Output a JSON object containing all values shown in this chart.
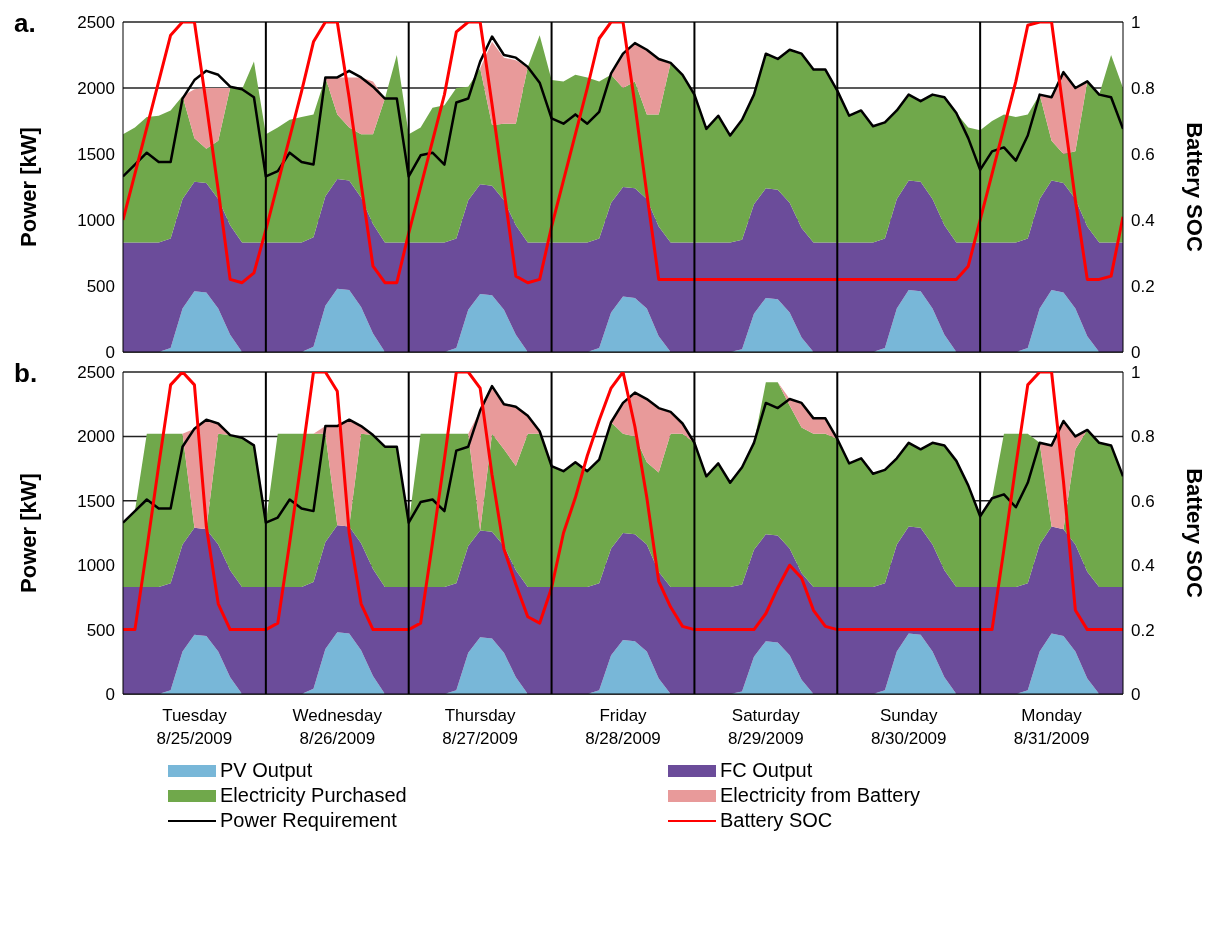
{
  "chart_data": [
    {
      "type": "area",
      "title": "a.",
      "ylabel": "Power [kW]",
      "y2label": "Battery SOC",
      "stacked": true,
      "grid": "y",
      "tick_labels": "y",
      "x": [
        "2009-08-25T00:00",
        "2009-08-25T02:00",
        "2009-08-25T04:00",
        "2009-08-25T06:00",
        "2009-08-25T08:00",
        "2009-08-25T10:00",
        "2009-08-25T12:00",
        "2009-08-25T14:00",
        "2009-08-25T16:00",
        "2009-08-25T18:00",
        "2009-08-25T20:00",
        "2009-08-25T22:00",
        "2009-08-26T00:00",
        "2009-08-26T02:00",
        "2009-08-26T04:00",
        "2009-08-26T06:00",
        "2009-08-26T08:00",
        "2009-08-26T10:00",
        "2009-08-26T12:00",
        "2009-08-26T14:00",
        "2009-08-26T16:00",
        "2009-08-26T18:00",
        "2009-08-26T20:00",
        "2009-08-26T22:00",
        "2009-08-27T00:00",
        "2009-08-27T02:00",
        "2009-08-27T04:00",
        "2009-08-27T06:00",
        "2009-08-27T08:00",
        "2009-08-27T10:00",
        "2009-08-27T12:00",
        "2009-08-27T14:00",
        "2009-08-27T16:00",
        "2009-08-27T18:00",
        "2009-08-27T20:00",
        "2009-08-27T22:00",
        "2009-08-28T00:00",
        "2009-08-28T02:00",
        "2009-08-28T04:00",
        "2009-08-28T06:00",
        "2009-08-28T08:00",
        "2009-08-28T10:00",
        "2009-08-28T12:00",
        "2009-08-28T14:00",
        "2009-08-28T16:00",
        "2009-08-28T18:00",
        "2009-08-28T20:00",
        "2009-08-28T22:00",
        "2009-08-29T00:00",
        "2009-08-29T02:00",
        "2009-08-29T04:00",
        "2009-08-29T06:00",
        "2009-08-29T08:00",
        "2009-08-29T10:00",
        "2009-08-29T12:00",
        "2009-08-29T14:00",
        "2009-08-29T16:00",
        "2009-08-29T18:00",
        "2009-08-29T20:00",
        "2009-08-29T22:00",
        "2009-08-30T00:00",
        "2009-08-30T02:00",
        "2009-08-30T04:00",
        "2009-08-30T06:00",
        "2009-08-30T08:00",
        "2009-08-30T10:00",
        "2009-08-30T12:00",
        "2009-08-30T14:00",
        "2009-08-30T16:00",
        "2009-08-30T18:00",
        "2009-08-30T20:00",
        "2009-08-30T22:00",
        "2009-08-31T00:00",
        "2009-08-31T02:00",
        "2009-08-31T04:00",
        "2009-08-31T06:00",
        "2009-08-31T08:00",
        "2009-08-31T10:00",
        "2009-08-31T12:00",
        "2009-08-31T14:00",
        "2009-08-31T16:00",
        "2009-08-31T18:00",
        "2009-08-31T20:00",
        "2009-08-31T22:00",
        "2009-09-01T00:00"
      ],
      "xlim": [
        "2009-08-25T00:00",
        "2009-09-01T00:00"
      ],
      "ylim": [
        0,
        2500
      ],
      "yticks": [
        0,
        500,
        1000,
        1500,
        2000,
        2500
      ],
      "y2lim": [
        0,
        1
      ],
      "y2ticks": [
        0,
        0.2,
        0.4,
        0.6,
        0.8,
        1
      ],
      "ref_lines": [
        {
          "axis": "x",
          "value": "2009-08-26T00:00",
          "color": "#000000"
        },
        {
          "axis": "x",
          "value": "2009-08-27T00:00",
          "color": "#000000"
        },
        {
          "axis": "x",
          "value": "2009-08-28T00:00",
          "color": "#000000"
        },
        {
          "axis": "x",
          "value": "2009-08-29T00:00",
          "color": "#000000"
        },
        {
          "axis": "x",
          "value": "2009-08-30T00:00",
          "color": "#000000"
        },
        {
          "axis": "x",
          "value": "2009-08-31T00:00",
          "color": "#000000"
        }
      ],
      "series": [
        {
          "color": "#78b7d8",
          "values": [
            0,
            0,
            0,
            0,
            30,
            330,
            460,
            450,
            330,
            130,
            0,
            0,
            0,
            0,
            0,
            0,
            40,
            350,
            480,
            470,
            340,
            140,
            0,
            0,
            0,
            0,
            0,
            0,
            30,
            320,
            440,
            430,
            320,
            130,
            0,
            0,
            0,
            0,
            0,
            0,
            30,
            300,
            420,
            410,
            330,
            120,
            0,
            0,
            0,
            0,
            0,
            0,
            20,
            290,
            410,
            400,
            300,
            110,
            0,
            0,
            0,
            0,
            0,
            0,
            30,
            330,
            470,
            460,
            330,
            130,
            0,
            0,
            0,
            0,
            0,
            0,
            30,
            330,
            470,
            450,
            330,
            120,
            0,
            0,
            0
          ]
        },
        {
          "color": "#6b4c9a",
          "values": [
            830,
            830,
            830,
            830,
            830,
            830,
            830,
            830,
            830,
            830,
            830,
            830,
            830,
            830,
            830,
            830,
            830,
            830,
            830,
            830,
            830,
            830,
            830,
            830,
            830,
            830,
            830,
            830,
            830,
            830,
            830,
            830,
            830,
            830,
            830,
            830,
            830,
            830,
            830,
            830,
            830,
            830,
            830,
            830,
            830,
            830,
            830,
            830,
            830,
            830,
            830,
            830,
            830,
            830,
            830,
            830,
            830,
            830,
            830,
            830,
            830,
            830,
            830,
            830,
            830,
            830,
            830,
            830,
            830,
            830,
            830,
            830,
            830,
            830,
            830,
            830,
            830,
            830,
            830,
            830,
            830,
            830,
            830,
            830,
            830
          ]
        },
        {
          "color": "#70a84b",
          "values": [
            820,
            870,
            950,
            960,
            970,
            780,
            330,
            260,
            440,
            1040,
            1160,
            1370,
            820,
            870,
            930,
            950,
            930,
            900,
            490,
            400,
            480,
            680,
            1090,
            1420,
            820,
            870,
            1020,
            1040,
            1140,
            860,
            880,
            460,
            580,
            770,
            1330,
            1570,
            1230,
            1220,
            1270,
            1250,
            1190,
            970,
            750,
            810,
            640,
            850,
            1360,
            1270,
            1120,
            860,
            960,
            810,
            910,
            830,
            1020,
            990,
            1160,
            1320,
            1310,
            1310,
            1150,
            960,
            1000,
            880,
            880,
            670,
            650,
            610,
            790,
            970,
            980,
            870,
            850,
            920,
            970,
            950,
            940,
            790,
            300,
            220,
            360,
            1100,
            1120,
            1420,
            1170
          ]
        },
        {
          "color": "#e89a9a",
          "values": [
            0,
            0,
            0,
            0,
            0,
            0,
            370,
            460,
            400,
            0,
            0,
            0,
            0,
            0,
            0,
            0,
            0,
            0,
            280,
            380,
            430,
            400,
            0,
            0,
            0,
            0,
            0,
            0,
            0,
            0,
            0,
            630,
            500,
            480,
            0,
            0,
            0,
            0,
            0,
            0,
            0,
            0,
            260,
            290,
            490,
            420,
            0,
            0,
            0,
            0,
            0,
            0,
            0,
            0,
            0,
            0,
            0,
            0,
            0,
            0,
            0,
            0,
            0,
            0,
            0,
            0,
            0,
            0,
            0,
            0,
            0,
            0,
            0,
            0,
            0,
            0,
            0,
            0,
            330,
            620,
            480,
            0,
            0,
            0,
            0
          ]
        },
        {
          "type": "line",
          "color": "#000000",
          "values": [
            1330,
            1420,
            1510,
            1440,
            1440,
            1920,
            2060,
            2130,
            2100,
            2010,
            1990,
            1930,
            1330,
            1370,
            1510,
            1440,
            1420,
            2080,
            2080,
            2130,
            2080,
            2010,
            1920,
            1920,
            1330,
            1490,
            1510,
            1420,
            1890,
            1920,
            2200,
            2390,
            2250,
            2230,
            2160,
            2040,
            1770,
            1730,
            1800,
            1730,
            1820,
            2110,
            2260,
            2340,
            2290,
            2220,
            2190,
            2100,
            1950,
            1690,
            1790,
            1640,
            1760,
            1950,
            2260,
            2220,
            2290,
            2260,
            2140,
            2140,
            1980,
            1790,
            1830,
            1710,
            1740,
            1830,
            1950,
            1900,
            1950,
            1930,
            1810,
            1620,
            1380,
            1520,
            1550,
            1450,
            1640,
            1950,
            1930,
            2120,
            2000,
            2050,
            1950,
            1930,
            1690
          ]
        },
        {
          "type": "line",
          "axis": "y2",
          "color": "#ff0000",
          "values": [
            0.4,
            0.54,
            0.68,
            0.82,
            0.96,
            1,
            1,
            0.75,
            0.49,
            0.22,
            0.21,
            0.24,
            0.37,
            0.51,
            0.65,
            0.79,
            0.94,
            1,
            1,
            0.77,
            0.51,
            0.26,
            0.21,
            0.21,
            0.36,
            0.5,
            0.64,
            0.78,
            0.97,
            1,
            1,
            0.75,
            0.49,
            0.23,
            0.21,
            0.22,
            0.38,
            0.52,
            0.66,
            0.8,
            0.95,
            1,
            1,
            0.75,
            0.48,
            0.22,
            0.22,
            0.22,
            0.22,
            0.22,
            0.22,
            0.22,
            0.22,
            0.22,
            0.22,
            0.22,
            0.22,
            0.22,
            0.22,
            0.22,
            0.22,
            0.22,
            0.22,
            0.22,
            0.22,
            0.22,
            0.22,
            0.22,
            0.22,
            0.22,
            0.22,
            0.26,
            0.4,
            0.54,
            0.68,
            0.82,
            0.99,
            1,
            1,
            0.73,
            0.46,
            0.22,
            0.22,
            0.23,
            0.41
          ]
        }
      ]
    },
    {
      "type": "area",
      "title": "b.",
      "ylabel": "Power [kW]",
      "y2label": "Battery SOC",
      "stacked": true,
      "grid": "y",
      "legend": "bottom",
      "x": [
        "2009-08-25T00:00",
        "2009-08-25T02:00",
        "2009-08-25T04:00",
        "2009-08-25T06:00",
        "2009-08-25T08:00",
        "2009-08-25T10:00",
        "2009-08-25T12:00",
        "2009-08-25T14:00",
        "2009-08-25T16:00",
        "2009-08-25T18:00",
        "2009-08-25T20:00",
        "2009-08-25T22:00",
        "2009-08-26T00:00",
        "2009-08-26T02:00",
        "2009-08-26T04:00",
        "2009-08-26T06:00",
        "2009-08-26T08:00",
        "2009-08-26T10:00",
        "2009-08-26T12:00",
        "2009-08-26T14:00",
        "2009-08-26T16:00",
        "2009-08-26T18:00",
        "2009-08-26T20:00",
        "2009-08-26T22:00",
        "2009-08-27T00:00",
        "2009-08-27T02:00",
        "2009-08-27T04:00",
        "2009-08-27T06:00",
        "2009-08-27T08:00",
        "2009-08-27T10:00",
        "2009-08-27T12:00",
        "2009-08-27T14:00",
        "2009-08-27T16:00",
        "2009-08-27T18:00",
        "2009-08-27T20:00",
        "2009-08-27T22:00",
        "2009-08-28T00:00",
        "2009-08-28T02:00",
        "2009-08-28T04:00",
        "2009-08-28T06:00",
        "2009-08-28T08:00",
        "2009-08-28T10:00",
        "2009-08-28T12:00",
        "2009-08-28T14:00",
        "2009-08-28T16:00",
        "2009-08-28T18:00",
        "2009-08-28T20:00",
        "2009-08-28T22:00",
        "2009-08-29T00:00",
        "2009-08-29T02:00",
        "2009-08-29T04:00",
        "2009-08-29T06:00",
        "2009-08-29T08:00",
        "2009-08-29T10:00",
        "2009-08-29T12:00",
        "2009-08-29T14:00",
        "2009-08-29T16:00",
        "2009-08-29T18:00",
        "2009-08-29T20:00",
        "2009-08-29T22:00",
        "2009-08-30T00:00",
        "2009-08-30T02:00",
        "2009-08-30T04:00",
        "2009-08-30T06:00",
        "2009-08-30T08:00",
        "2009-08-30T10:00",
        "2009-08-30T12:00",
        "2009-08-30T14:00",
        "2009-08-30T16:00",
        "2009-08-30T18:00",
        "2009-08-30T20:00",
        "2009-08-30T22:00",
        "2009-08-31T00:00",
        "2009-08-31T02:00",
        "2009-08-31T04:00",
        "2009-08-31T06:00",
        "2009-08-31T08:00",
        "2009-08-31T10:00",
        "2009-08-31T12:00",
        "2009-08-31T14:00",
        "2009-08-31T16:00",
        "2009-08-31T18:00",
        "2009-08-31T20:00",
        "2009-08-31T22:00",
        "2009-09-01T00:00"
      ],
      "xlim": [
        "2009-08-25T00:00",
        "2009-09-01T00:00"
      ],
      "xticks": [
        {
          "value": "2009-08-25T12:00",
          "label": "Tuesday\n8/25/2009"
        },
        {
          "value": "2009-08-26T12:00",
          "label": "Wednesday\n8/26/2009"
        },
        {
          "value": "2009-08-27T12:00",
          "label": "Thursday\n8/27/2009"
        },
        {
          "value": "2009-08-28T12:00",
          "label": "Friday\n8/28/2009"
        },
        {
          "value": "2009-08-29T12:00",
          "label": "Saturday\n8/29/2009"
        },
        {
          "value": "2009-08-30T12:00",
          "label": "Sunday\n8/30/2009"
        },
        {
          "value": "2009-08-31T12:00",
          "label": "Monday\n8/31/2009"
        }
      ],
      "ylim": [
        0,
        2500
      ],
      "yticks": [
        0,
        500,
        1000,
        1500,
        2000,
        2500
      ],
      "y2lim": [
        0,
        1
      ],
      "y2ticks": [
        0,
        0.2,
        0.4,
        0.6,
        0.8,
        1
      ],
      "ref_lines": [
        {
          "axis": "x",
          "value": "2009-08-26T00:00",
          "color": "#000000"
        },
        {
          "axis": "x",
          "value": "2009-08-27T00:00",
          "color": "#000000"
        },
        {
          "axis": "x",
          "value": "2009-08-28T00:00",
          "color": "#000000"
        },
        {
          "axis": "x",
          "value": "2009-08-29T00:00",
          "color": "#000000"
        },
        {
          "axis": "x",
          "value": "2009-08-30T00:00",
          "color": "#000000"
        },
        {
          "axis": "x",
          "value": "2009-08-31T00:00",
          "color": "#000000"
        }
      ],
      "series": [
        {
          "name": "PV Output",
          "color": "#78b7d8",
          "values": [
            0,
            0,
            0,
            0,
            30,
            330,
            460,
            450,
            330,
            130,
            0,
            0,
            0,
            0,
            0,
            0,
            40,
            350,
            480,
            470,
            340,
            140,
            0,
            0,
            0,
            0,
            0,
            0,
            30,
            320,
            440,
            430,
            320,
            130,
            0,
            0,
            0,
            0,
            0,
            0,
            30,
            300,
            420,
            410,
            330,
            120,
            0,
            0,
            0,
            0,
            0,
            0,
            20,
            290,
            410,
            400,
            300,
            110,
            0,
            0,
            0,
            0,
            0,
            0,
            30,
            330,
            470,
            460,
            330,
            130,
            0,
            0,
            0,
            0,
            0,
            0,
            30,
            330,
            470,
            450,
            330,
            120,
            0,
            0,
            0
          ]
        },
        {
          "name": "FC Output",
          "color": "#6b4c9a",
          "values": [
            830,
            830,
            830,
            830,
            830,
            830,
            830,
            830,
            830,
            830,
            830,
            830,
            830,
            830,
            830,
            830,
            830,
            830,
            830,
            830,
            830,
            830,
            830,
            830,
            830,
            830,
            830,
            830,
            830,
            830,
            830,
            830,
            830,
            830,
            830,
            830,
            830,
            830,
            830,
            830,
            830,
            830,
            830,
            830,
            830,
            830,
            830,
            830,
            830,
            830,
            830,
            830,
            830,
            830,
            830,
            830,
            830,
            830,
            830,
            830,
            830,
            830,
            830,
            830,
            830,
            830,
            830,
            830,
            830,
            830,
            830,
            830,
            830,
            830,
            830,
            830,
            830,
            830,
            830,
            830,
            830,
            830,
            830,
            830,
            830
          ]
        },
        {
          "name": "Electricity Purchased",
          "color": "#70a84b",
          "values": [
            500,
            590,
            1190,
            1190,
            1160,
            860,
            0,
            0,
            860,
            1050,
            1160,
            1100,
            500,
            1190,
            1190,
            1190,
            1150,
            840,
            0,
            0,
            850,
            1040,
            1090,
            1090,
            500,
            1190,
            1190,
            1190,
            1160,
            870,
            0,
            760,
            750,
            810,
            1190,
            1190,
            940,
            900,
            970,
            900,
            960,
            980,
            770,
            760,
            640,
            770,
            1190,
            1190,
            1120,
            860,
            960,
            810,
            910,
            830,
            1180,
            1190,
            1110,
            1130,
            1190,
            1190,
            1150,
            960,
            1000,
            880,
            880,
            670,
            650,
            610,
            790,
            970,
            980,
            790,
            550,
            690,
            1190,
            1190,
            1160,
            790,
            0,
            0,
            740,
            1100,
            1120,
            1100,
            860
          ]
        },
        {
          "name": "Electricity from Battery",
          "color": "#e89a9a",
          "values": [
            0,
            0,
            0,
            0,
            0,
            0,
            770,
            850,
            80,
            0,
            0,
            0,
            0,
            0,
            0,
            0,
            0,
            60,
            770,
            830,
            60,
            0,
            0,
            0,
            0,
            0,
            0,
            0,
            0,
            0,
            930,
            370,
            350,
            460,
            140,
            20,
            0,
            0,
            0,
            0,
            0,
            0,
            240,
            340,
            490,
            500,
            170,
            80,
            0,
            0,
            0,
            0,
            0,
            0,
            0,
            0,
            50,
            190,
            120,
            120,
            0,
            0,
            0,
            0,
            0,
            0,
            0,
            0,
            0,
            0,
            0,
            0,
            0,
            0,
            0,
            0,
            0,
            0,
            630,
            840,
            100,
            0,
            0,
            0,
            0
          ]
        },
        {
          "name": "Power Requirement",
          "type": "line",
          "color": "#000000",
          "values": [
            1330,
            1420,
            1510,
            1440,
            1440,
            1920,
            2060,
            2130,
            2100,
            2010,
            1990,
            1930,
            1330,
            1370,
            1510,
            1440,
            1420,
            2080,
            2080,
            2130,
            2080,
            2010,
            1920,
            1920,
            1330,
            1490,
            1510,
            1420,
            1890,
            1920,
            2200,
            2390,
            2250,
            2230,
            2160,
            2040,
            1770,
            1730,
            1800,
            1730,
            1820,
            2110,
            2260,
            2340,
            2290,
            2220,
            2190,
            2100,
            1950,
            1690,
            1790,
            1640,
            1760,
            1950,
            2260,
            2220,
            2290,
            2260,
            2140,
            2140,
            1980,
            1790,
            1830,
            1710,
            1740,
            1830,
            1950,
            1900,
            1950,
            1930,
            1810,
            1620,
            1380,
            1520,
            1550,
            1450,
            1640,
            1950,
            1930,
            2120,
            2000,
            2050,
            1950,
            1930,
            1690
          ]
        },
        {
          "name": "Battery SOC",
          "type": "line",
          "axis": "y2",
          "color": "#ff0000",
          "values": [
            0.2,
            0.2,
            0.45,
            0.71,
            0.96,
            1,
            0.96,
            0.52,
            0.28,
            0.2,
            0.2,
            0.2,
            0.2,
            0.22,
            0.47,
            0.73,
            1,
            1,
            0.94,
            0.5,
            0.28,
            0.2,
            0.2,
            0.2,
            0.2,
            0.22,
            0.47,
            0.73,
            1,
            1,
            0.95,
            0.68,
            0.45,
            0.34,
            0.24,
            0.22,
            0.33,
            0.5,
            0.61,
            0.74,
            0.85,
            0.95,
            1,
            0.83,
            0.61,
            0.35,
            0.27,
            0.21,
            0.2,
            0.2,
            0.2,
            0.2,
            0.2,
            0.2,
            0.25,
            0.33,
            0.4,
            0.36,
            0.26,
            0.21,
            0.2,
            0.2,
            0.2,
            0.2,
            0.2,
            0.2,
            0.2,
            0.2,
            0.2,
            0.2,
            0.2,
            0.2,
            0.2,
            0.2,
            0.45,
            0.71,
            0.96,
            1,
            1,
            0.66,
            0.26,
            0.2,
            0.2,
            0.2,
            0.2
          ]
        }
      ]
    }
  ]
}
